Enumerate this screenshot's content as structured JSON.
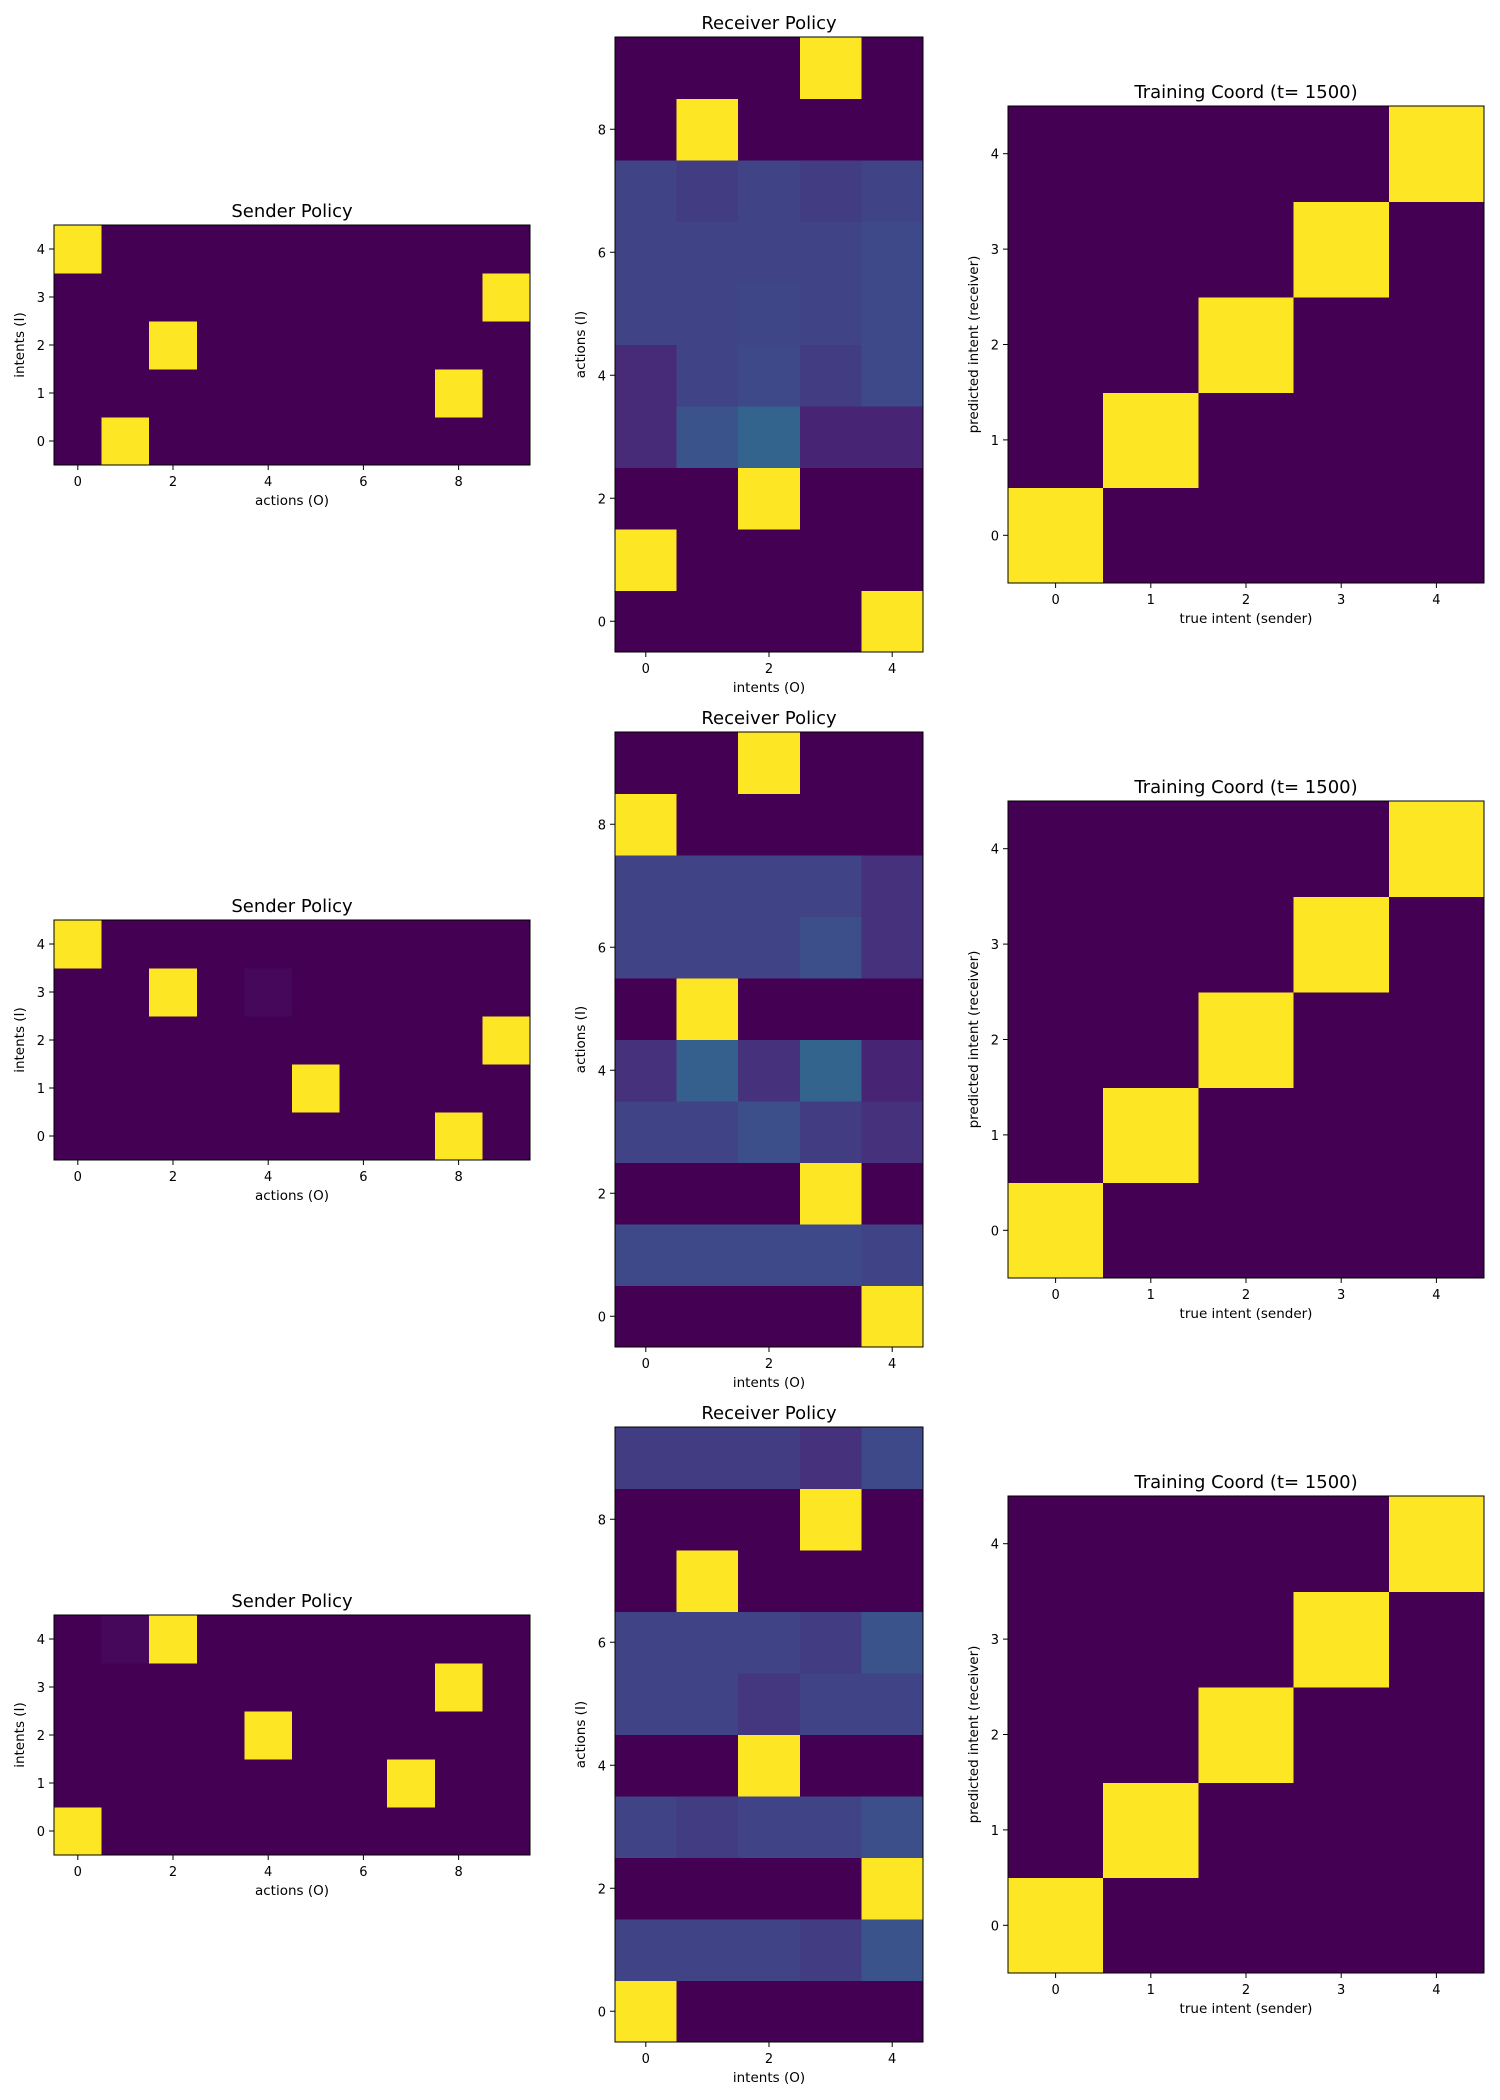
{
  "colors": {
    "low": "#440154",
    "high": "#fde725",
    "mid_tone": "#3b528b"
  },
  "chart_data": [
    {
      "type": "heatmap",
      "title": "Sender Policy",
      "xlabel": "actions (O)",
      "ylabel": "intents (I)",
      "xticks": [
        "0",
        "2",
        "4",
        "6",
        "8"
      ],
      "yticks": [
        "0",
        "1",
        "2",
        "3",
        "4"
      ],
      "rows_bottom_to_top": true,
      "values": [
        [
          0,
          1,
          0,
          0,
          0,
          0,
          0,
          0,
          0,
          0
        ],
        [
          0,
          0,
          0,
          0,
          0,
          0,
          0,
          0,
          1,
          0
        ],
        [
          0,
          0,
          1,
          0,
          0,
          0,
          0,
          0,
          0,
          0
        ],
        [
          0,
          0,
          0,
          0,
          0,
          0,
          0,
          0,
          0,
          1
        ],
        [
          1,
          0,
          0,
          0,
          0,
          0,
          0,
          0,
          0,
          0
        ]
      ]
    },
    {
      "type": "heatmap",
      "title": "Receiver Policy",
      "xlabel": "intents (O)",
      "ylabel": "actions (I)",
      "xticks": [
        "0",
        "2",
        "4"
      ],
      "yticks": [
        "0",
        "2",
        "4",
        "6",
        "8"
      ],
      "rows_bottom_to_top": true,
      "values": [
        [
          0,
          0,
          0,
          0,
          1
        ],
        [
          1,
          0,
          0,
          0,
          0
        ],
        [
          0,
          0,
          1,
          0,
          0
        ],
        [
          0.12,
          0.26,
          0.32,
          0.1,
          0.1
        ],
        [
          0.12,
          0.2,
          0.22,
          0.18,
          0.22
        ],
        [
          0.2,
          0.2,
          0.21,
          0.2,
          0.22
        ],
        [
          0.2,
          0.2,
          0.2,
          0.2,
          0.22
        ],
        [
          0.2,
          0.18,
          0.2,
          0.18,
          0.2
        ],
        [
          0,
          1,
          0,
          0,
          0
        ],
        [
          0,
          0,
          0,
          1,
          0
        ]
      ]
    },
    {
      "type": "heatmap",
      "title": "Training Coord (t= 1500)",
      "xlabel": "true intent (sender)",
      "ylabel": "predicted intent (receiver)",
      "xticks": [
        "0",
        "1",
        "2",
        "3",
        "4"
      ],
      "yticks": [
        "0",
        "1",
        "2",
        "3",
        "4"
      ],
      "rows_bottom_to_top": true,
      "values": [
        [
          1,
          0,
          0,
          0,
          0
        ],
        [
          0,
          1,
          0,
          0,
          0
        ],
        [
          0,
          0,
          1,
          0,
          0
        ],
        [
          0,
          0,
          0,
          1,
          0
        ],
        [
          0,
          0,
          0,
          0,
          1
        ]
      ]
    },
    {
      "type": "heatmap",
      "title": "Sender Policy",
      "xlabel": "actions (O)",
      "ylabel": "intents (I)",
      "xticks": [
        "0",
        "2",
        "4",
        "6",
        "8"
      ],
      "yticks": [
        "0",
        "1",
        "2",
        "3",
        "4"
      ],
      "rows_bottom_to_top": true,
      "values": [
        [
          0,
          0,
          0,
          0,
          0,
          0,
          0,
          0,
          1,
          0
        ],
        [
          0,
          0,
          0,
          0,
          0,
          1,
          0,
          0,
          0,
          0
        ],
        [
          0,
          0,
          0,
          0,
          0,
          0,
          0,
          0,
          0,
          1
        ],
        [
          0,
          0,
          1,
          0,
          0.02,
          0,
          0,
          0,
          0,
          0
        ],
        [
          1,
          0,
          0,
          0,
          0,
          0,
          0,
          0,
          0,
          0
        ]
      ]
    },
    {
      "type": "heatmap",
      "title": "Receiver Policy",
      "xlabel": "intents (O)",
      "ylabel": "actions (I)",
      "xticks": [
        "0",
        "2",
        "4"
      ],
      "yticks": [
        "0",
        "2",
        "4",
        "6",
        "8"
      ],
      "rows_bottom_to_top": true,
      "values": [
        [
          0,
          0,
          0,
          0,
          1
        ],
        [
          0.22,
          0.22,
          0.22,
          0.22,
          0.2
        ],
        [
          0,
          0,
          0,
          1,
          0
        ],
        [
          0.2,
          0.2,
          0.24,
          0.18,
          0.14
        ],
        [
          0.14,
          0.3,
          0.14,
          0.32,
          0.1
        ],
        [
          0,
          1,
          0,
          0,
          0
        ],
        [
          0.2,
          0.2,
          0.2,
          0.24,
          0.14
        ],
        [
          0.2,
          0.2,
          0.2,
          0.2,
          0.14
        ],
        [
          1,
          0,
          0,
          0,
          0
        ],
        [
          0,
          0,
          1,
          0,
          0
        ]
      ]
    },
    {
      "type": "heatmap",
      "title": "Training Coord (t= 1500)",
      "xlabel": "true intent (sender)",
      "ylabel": "predicted intent (receiver)",
      "xticks": [
        "0",
        "1",
        "2",
        "3",
        "4"
      ],
      "yticks": [
        "0",
        "1",
        "2",
        "3",
        "4"
      ],
      "rows_bottom_to_top": true,
      "values": [
        [
          1,
          0,
          0,
          0,
          0
        ],
        [
          0,
          1,
          0,
          0,
          0
        ],
        [
          0,
          0,
          1,
          0,
          0
        ],
        [
          0,
          0,
          0,
          1,
          0
        ],
        [
          0,
          0,
          0,
          0,
          1
        ]
      ]
    },
    {
      "type": "heatmap",
      "title": "Sender Policy",
      "xlabel": "actions (O)",
      "ylabel": "intents (I)",
      "xticks": [
        "0",
        "2",
        "4",
        "6",
        "8"
      ],
      "yticks": [
        "0",
        "1",
        "2",
        "3",
        "4"
      ],
      "rows_bottom_to_top": true,
      "values": [
        [
          1,
          0,
          0,
          0,
          0,
          0,
          0,
          0,
          0,
          0
        ],
        [
          0,
          0,
          0,
          0,
          0,
          0,
          0,
          1,
          0,
          0
        ],
        [
          0,
          0,
          0,
          0,
          1,
          0,
          0,
          0,
          0,
          0
        ],
        [
          0,
          0,
          0,
          0,
          0,
          0,
          0,
          0,
          1,
          0
        ],
        [
          0,
          0.02,
          1,
          0,
          0,
          0,
          0,
          0,
          0,
          0
        ]
      ]
    },
    {
      "type": "heatmap",
      "title": "Receiver Policy",
      "xlabel": "intents (O)",
      "ylabel": "actions (I)",
      "xticks": [
        "0",
        "2",
        "4"
      ],
      "yticks": [
        "0",
        "2",
        "4",
        "6",
        "8"
      ],
      "rows_bottom_to_top": true,
      "values": [
        [
          1,
          0,
          0,
          0,
          0
        ],
        [
          0.2,
          0.2,
          0.2,
          0.18,
          0.26
        ],
        [
          0,
          0,
          0,
          0,
          1
        ],
        [
          0.2,
          0.18,
          0.2,
          0.2,
          0.24
        ],
        [
          0,
          0,
          1,
          0,
          0
        ],
        [
          0.2,
          0.2,
          0.16,
          0.2,
          0.2
        ],
        [
          0.2,
          0.2,
          0.2,
          0.18,
          0.26
        ],
        [
          0,
          1,
          0,
          0,
          0
        ],
        [
          0,
          0,
          0,
          1,
          0
        ],
        [
          0.18,
          0.18,
          0.18,
          0.14,
          0.22
        ]
      ]
    },
    {
      "type": "heatmap",
      "title": "Training Coord (t= 1500)",
      "xlabel": "true intent (sender)",
      "ylabel": "predicted intent (receiver)",
      "xticks": [
        "0",
        "1",
        "2",
        "3",
        "4"
      ],
      "yticks": [
        "0",
        "1",
        "2",
        "3",
        "4"
      ],
      "rows_bottom_to_top": true,
      "values": [
        [
          1,
          0,
          0,
          0,
          0
        ],
        [
          0,
          1,
          0,
          0,
          0
        ],
        [
          0,
          0,
          1,
          0,
          0
        ],
        [
          0,
          0,
          0,
          1,
          0
        ],
        [
          0,
          0,
          0,
          0,
          1
        ]
      ]
    }
  ]
}
